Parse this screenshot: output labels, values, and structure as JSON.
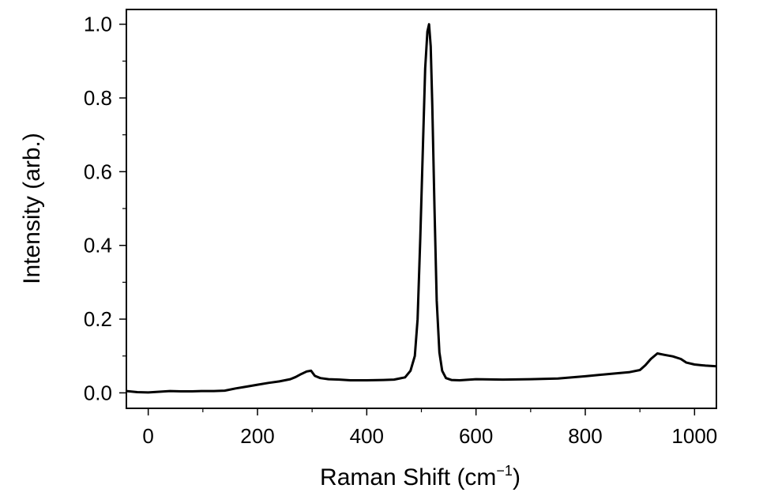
{
  "chart_data": {
    "type": "line",
    "title": "",
    "xlabel": "Raman Shift (cm",
    "xlabel_superscript": "−1",
    "xlabel_suffix": ")",
    "ylabel": "Intensity (arb.)",
    "xlim": [
      -40,
      1040
    ],
    "ylim": [
      -0.042,
      1.04
    ],
    "xticks": [
      0,
      200,
      400,
      600,
      800,
      1000
    ],
    "xtick_labels": [
      "0",
      "200",
      "400",
      "600",
      "800",
      "1000"
    ],
    "yticks": [
      0.0,
      0.2,
      0.4,
      0.6,
      0.8,
      1.0
    ],
    "ytick_labels": [
      "0.0",
      "0.2",
      "0.4",
      "0.6",
      "0.8",
      "1.0"
    ],
    "grid": false,
    "legend": "none",
    "line_color": "#000000",
    "series": [
      {
        "x": [
          -40,
          -20,
          0,
          20,
          40,
          60,
          80,
          100,
          120,
          140,
          160,
          180,
          200,
          220,
          240,
          260,
          270,
          280,
          290,
          298,
          305,
          315,
          330,
          350,
          370,
          400,
          430,
          450,
          470,
          480,
          488,
          493,
          498,
          503,
          507,
          511,
          514,
          517,
          520,
          524,
          528,
          533,
          538,
          545,
          555,
          570,
          600,
          650,
          700,
          750,
          800,
          850,
          880,
          900,
          910,
          920,
          932,
          945,
          960,
          975,
          985,
          1000,
          1020,
          1040
        ],
        "y": [
          0.005,
          0.002,
          0.001,
          0.003,
          0.005,
          0.004,
          0.004,
          0.005,
          0.005,
          0.006,
          0.012,
          0.017,
          0.022,
          0.027,
          0.031,
          0.037,
          0.043,
          0.051,
          0.058,
          0.06,
          0.046,
          0.04,
          0.037,
          0.036,
          0.034,
          0.034,
          0.035,
          0.036,
          0.042,
          0.06,
          0.1,
          0.2,
          0.42,
          0.68,
          0.88,
          0.98,
          1.0,
          0.94,
          0.78,
          0.5,
          0.25,
          0.11,
          0.06,
          0.04,
          0.035,
          0.034,
          0.037,
          0.036,
          0.037,
          0.039,
          0.045,
          0.052,
          0.056,
          0.062,
          0.075,
          0.092,
          0.107,
          0.103,
          0.099,
          0.092,
          0.082,
          0.077,
          0.074,
          0.072
        ]
      }
    ]
  }
}
